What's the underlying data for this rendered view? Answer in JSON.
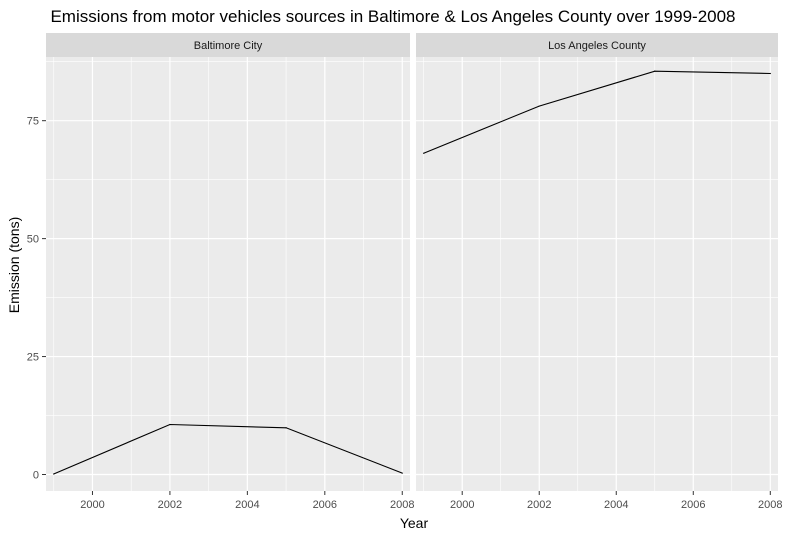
{
  "chart_data": {
    "type": "line",
    "title": "Emissions from motor vehicles sources in Baltimore & Los Angeles County over 1999-2008",
    "xlabel": "Year",
    "ylabel": "Emission (tons)",
    "xlim": [
      1998.8,
      2008.2
    ],
    "ylim": [
      -3.5,
      88.5
    ],
    "x_ticks": [
      2000,
      2002,
      2004,
      2006,
      2008
    ],
    "y_ticks": [
      0,
      25,
      50,
      75
    ],
    "grid": true,
    "line_color": "#000000",
    "panel_background": "#ebebeb",
    "strip_background": "#d9d9d9",
    "facets": [
      {
        "label": "Baltimore City",
        "series": [
          {
            "x": [
              1999,
              2002,
              2005,
              2008
            ],
            "y": [
              0.1,
              10.6,
              9.9,
              0.3
            ]
          }
        ]
      },
      {
        "label": "Los Angeles County",
        "series": [
          {
            "x": [
              1999,
              2002,
              2005,
              2008
            ],
            "y": [
              68.1,
              78.1,
              85.5,
              85.0
            ]
          }
        ]
      }
    ]
  }
}
